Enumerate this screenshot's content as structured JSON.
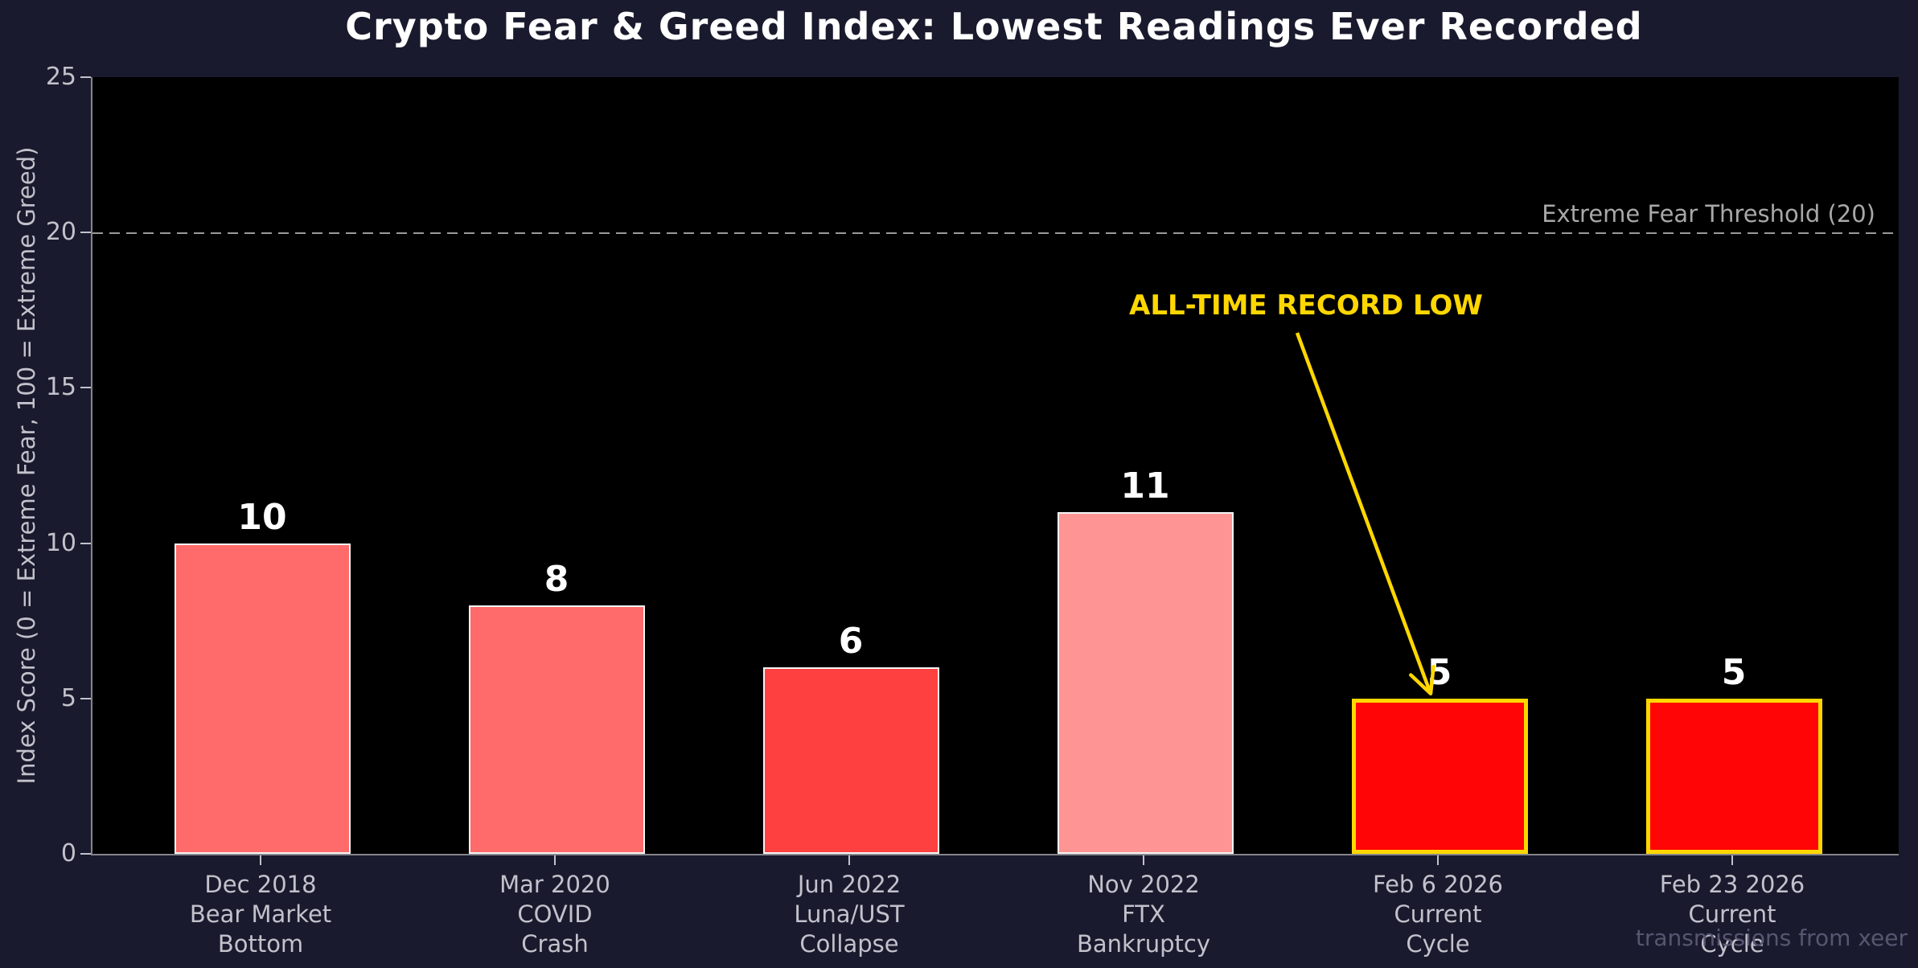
{
  "chart_data": {
    "type": "bar",
    "title": "Crypto Fear & Greed Index: Lowest Readings Ever Recorded",
    "ylabel": "Index Score (0 = Extreme Fear, 100 = Extreme Greed)",
    "xlabel": "",
    "ylim": [
      0,
      25
    ],
    "yticks": [
      0,
      5,
      10,
      15,
      20,
      25
    ],
    "grid": false,
    "legend": false,
    "plot_background": "#000000",
    "figure_background": "#1a1a2e",
    "categories": [
      [
        "Dec 2018",
        "Bear Market",
        "Bottom"
      ],
      [
        "Mar 2020",
        "COVID",
        "Crash"
      ],
      [
        "Jun 2022",
        "Luna/UST",
        "Collapse"
      ],
      [
        "Nov 2022",
        "FTX",
        "Bankruptcy"
      ],
      [
        "Feb 6 2026",
        "Current",
        "Cycle"
      ],
      [
        "Feb 23 2026",
        "Current",
        "Cycle"
      ]
    ],
    "values": [
      10,
      8,
      6,
      11,
      5,
      5
    ],
    "bar_colors": [
      "#ff6b6b",
      "#ff6b6b",
      "#ff4040",
      "#ff9494",
      "#ff0505",
      "#ff0505"
    ],
    "bar_edge_colors": [
      "#f5f5f5",
      "#f5f5f5",
      "#f5f5f5",
      "#f5f5f5",
      "#ffd700",
      "#ffd700"
    ],
    "bar_edge_widths": [
      2,
      2,
      2,
      2,
      5,
      5
    ],
    "value_label_color": "#ffffff",
    "threshold": {
      "value": 20,
      "label": "Extreme Fear Threshold (20)",
      "color": "#9a9a9a"
    },
    "annotation": {
      "text": "ALL-TIME RECORD LOW",
      "color": "#ffd700",
      "target_bar_index": 4
    }
  },
  "watermark": "transmissions from xeer"
}
